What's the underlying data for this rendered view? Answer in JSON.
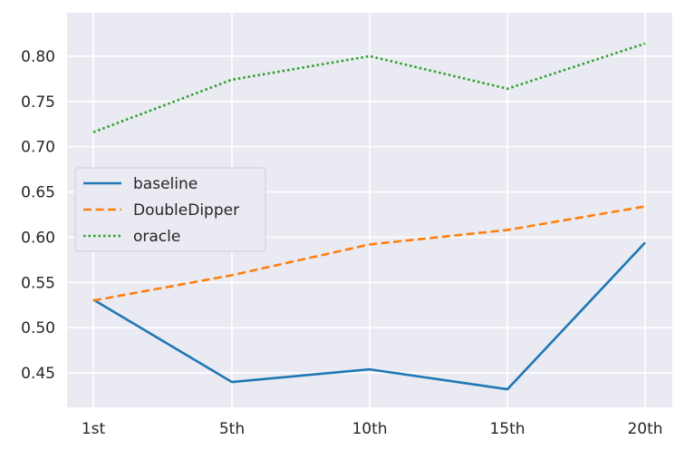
{
  "chart_data": {
    "type": "line",
    "title": "",
    "xlabel": "",
    "ylabel": "",
    "categories": [
      "1st",
      "5th",
      "10th",
      "15th",
      "20th"
    ],
    "ylim": [
      0.412,
      0.848
    ],
    "yticks": [
      "0.45",
      "0.50",
      "0.55",
      "0.60",
      "0.65",
      "0.70",
      "0.75",
      "0.80"
    ],
    "grid": true,
    "legend_position": "center-left",
    "series": [
      {
        "name": "baseline",
        "values": [
          0.531,
          0.44,
          0.454,
          0.432,
          0.594
        ],
        "color": "#1f77b4",
        "dash": "solid"
      },
      {
        "name": "DoubleDipper",
        "values": [
          0.53,
          0.558,
          0.592,
          0.608,
          0.634
        ],
        "color": "#ff7f0e",
        "dash": "dashed"
      },
      {
        "name": "oracle",
        "values": [
          0.716,
          0.774,
          0.8,
          0.764,
          0.814
        ],
        "color": "#2ca02c",
        "dash": "dotted"
      }
    ]
  },
  "colors": {
    "plot_background": "#eaeaf2",
    "grid": "#ffffff",
    "text": "#262626"
  }
}
